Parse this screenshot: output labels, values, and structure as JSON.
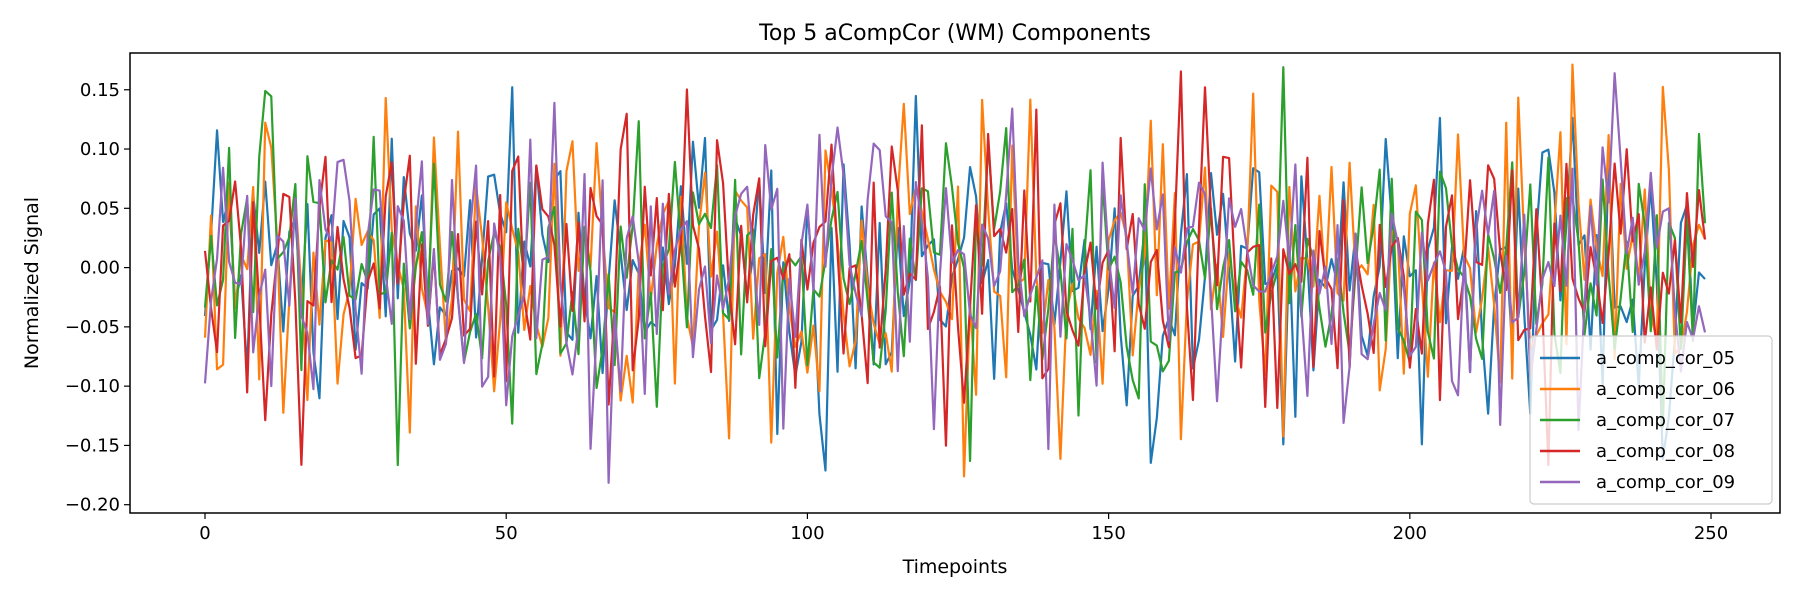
{
  "chart_data": {
    "type": "line",
    "title": "Top 5 aCompCor (WM) Components",
    "xlabel": "Timepoints",
    "ylabel": "Normalized Signal",
    "xlim": [
      -12.45,
      261.45
    ],
    "ylim": [
      -0.207,
      0.181
    ],
    "xticks": [
      0,
      50,
      100,
      150,
      200,
      250
    ],
    "yticks": [
      -0.2,
      -0.15,
      -0.1,
      -0.05,
      0.0,
      0.05,
      0.1,
      0.15
    ],
    "ytick_labels": [
      "−0.20",
      "−0.15",
      "−0.10",
      "−0.05",
      "0.00",
      "0.05",
      "0.10",
      "0.15"
    ],
    "grid": false,
    "legend_position": "lower right",
    "n_points": 250,
    "series": [
      {
        "name": "a_comp_cor_05",
        "color": "#1f77b4"
      },
      {
        "name": "a_comp_cor_06",
        "color": "#ff7f0e"
      },
      {
        "name": "a_comp_cor_07",
        "color": "#2ca02c"
      },
      {
        "name": "a_comp_cor_08",
        "color": "#d62728"
      },
      {
        "name": "a_comp_cor_09",
        "color": "#9467bd"
      }
    ]
  }
}
